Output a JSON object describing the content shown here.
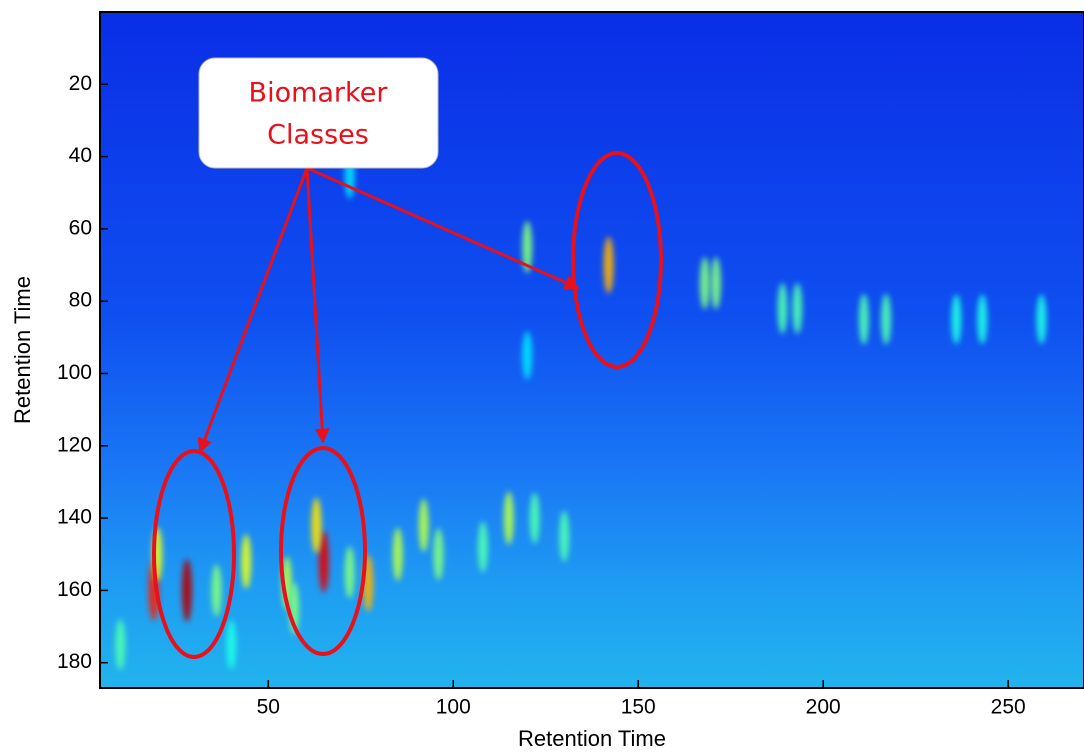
{
  "chart_data": {
    "type": "heatmap",
    "x_label": "Retention Time",
    "y_label": "Retention Time",
    "xlim": [
      4.5,
      270.5
    ],
    "ylim": [
      0,
      187
    ],
    "y_reversed": true,
    "xticks": [
      50,
      100,
      150,
      200,
      250
    ],
    "yticks": [
      20,
      40,
      60,
      80,
      100,
      120,
      140,
      160,
      180
    ],
    "colormap": "jet",
    "peaks": {
      "x": [
        19,
        28,
        20,
        44,
        36,
        55,
        65,
        63,
        77,
        72,
        85,
        92,
        96,
        115,
        122,
        130,
        120,
        142,
        168,
        171,
        189,
        193,
        211,
        217,
        236,
        243,
        259,
        72,
        120,
        10,
        40,
        108,
        57
      ],
      "y": [
        160,
        160,
        150,
        152,
        160,
        158,
        152,
        142,
        158,
        155,
        150,
        142,
        150,
        140,
        140,
        145,
        65,
        70,
        75,
        75,
        82,
        82,
        85,
        85,
        85,
        85,
        85,
        45,
        95,
        175,
        175,
        148,
        165
      ],
      "values": [
        0.85,
        0.95,
        0.6,
        0.6,
        0.5,
        0.55,
        0.9,
        0.65,
        0.7,
        0.5,
        0.55,
        0.55,
        0.5,
        0.55,
        0.45,
        0.45,
        0.5,
        0.7,
        0.5,
        0.5,
        0.45,
        0.45,
        0.45,
        0.45,
        0.4,
        0.4,
        0.4,
        0.35,
        0.35,
        0.45,
        0.4,
        0.45,
        0.5
      ]
    },
    "annotation": [
      "Biomarker",
      "Classes"
    ],
    "annotation_color": "#e8101a"
  }
}
